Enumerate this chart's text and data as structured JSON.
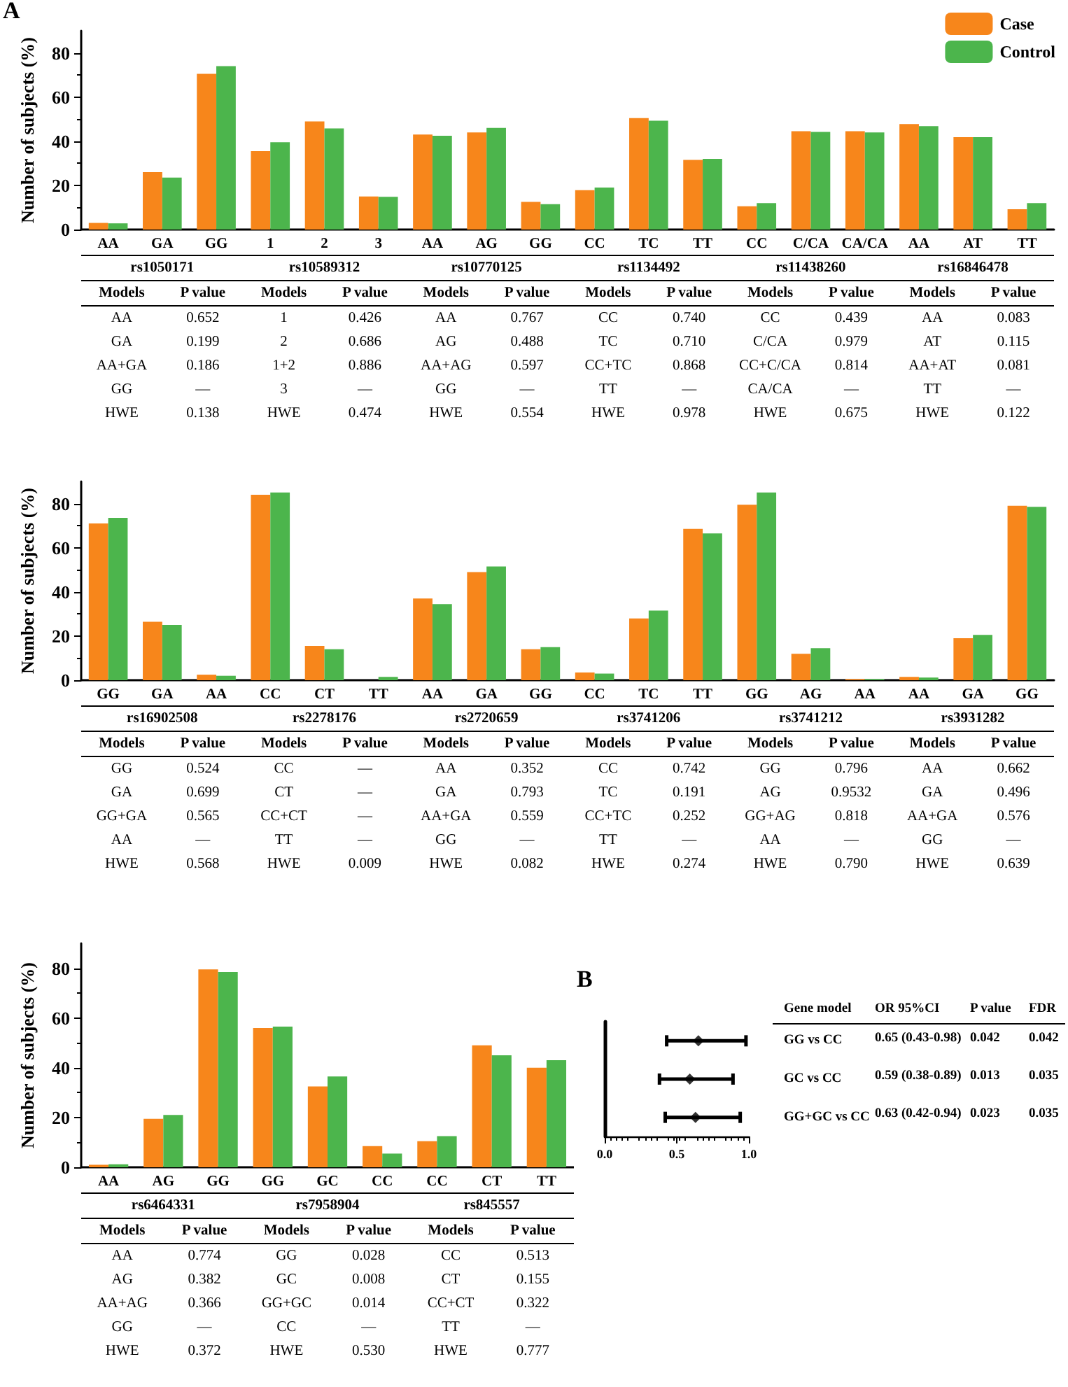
{
  "chart_data": [
    {
      "type": "bar",
      "title": "A",
      "ylabel": "Number of subjects (%)",
      "legend": "top right",
      "ylim": [
        0,
        90
      ],
      "yticks": [
        0,
        20,
        40,
        60,
        80
      ],
      "categories": [
        "AA",
        "GA",
        "GG",
        "1",
        "2",
        "3",
        "AA",
        "AG",
        "GG",
        "CC",
        "TC",
        "TT",
        "CC",
        "C/CA",
        "CA/CA",
        "AA",
        "AT",
        "TT"
      ],
      "series": [
        {
          "name": "Case",
          "color": "#f7861b",
          "values": [
            3,
            26,
            70.5,
            35.5,
            49,
            15,
            43,
            44,
            12.5,
            17.8,
            50.5,
            31.5,
            10.5,
            44.5,
            44.5,
            47.8,
            41.8,
            9.2
          ]
        },
        {
          "name": "Control",
          "color": "#4cb54c",
          "values": [
            2.8,
            23.5,
            74,
            39.5,
            45.8,
            14.8,
            42.5,
            46,
            11.5,
            19,
            49.3,
            32,
            12,
            44.2,
            44,
            46.8,
            41.8,
            12
          ]
        }
      ],
      "annotations": [
        "rs1050171",
        "Models",
        "P value",
        "AA",
        "0.652",
        "GA",
        "0.199",
        "AA+GA",
        "0.186",
        "GG",
        "—",
        "HWE",
        "0.138",
        "rs10589312",
        "Models",
        "P value",
        "1",
        "0.426",
        "2",
        "0.686",
        "1+2",
        "0.886",
        "3",
        "—",
        "HWE",
        "0.474",
        "rs10770125",
        "Models",
        "P value",
        "AA",
        "0.767",
        "AG",
        "0.488",
        "AA+AG",
        "0.597",
        "GG",
        "—",
        "HWE",
        "0.554",
        "rs1134492",
        "Models",
        "P value",
        "CC",
        "0.740",
        "TC",
        "0.710",
        "CC+TC",
        "0.868",
        "TT",
        "—",
        "HWE",
        "0.978",
        "rs11438260",
        "Models",
        "P value",
        "CC",
        "0.439",
        "C/CA",
        "0.979",
        "CC+C/CA",
        "0.814",
        "CA/CA",
        "—",
        "HWE",
        "0.675",
        "rs16846478",
        "Models",
        "P value",
        "AA",
        "0.083",
        "AT",
        "0.115",
        "AA+AT",
        "0.081",
        "TT",
        "—",
        "HWE",
        "0.122"
      ]
    },
    {
      "type": "bar",
      "ylabel": "Number of subjects (%)",
      "legend": false,
      "ylim": [
        0,
        90
      ],
      "yticks": [
        0,
        20,
        40,
        60,
        80
      ],
      "categories": [
        "GG",
        "GA",
        "AA",
        "CC",
        "CT",
        "TT",
        "AA",
        "GA",
        "GG",
        "CC",
        "TC",
        "TT",
        "GG",
        "AG",
        "AA",
        "AA",
        "GA",
        "GG"
      ],
      "series": [
        {
          "color": "#f7861b",
          "values": [
            71,
            26.5,
            2.5,
            84,
            15.5,
            0,
            37,
            49,
            14,
            3.5,
            28,
            68.5,
            79.5,
            12,
            0.5,
            1.5,
            19,
            79
          ]
        },
        {
          "color": "#4cb54c",
          "values": [
            73.5,
            25,
            2,
            85,
            14,
            1.5,
            34.5,
            51.5,
            15,
            3,
            31.5,
            66.5,
            85,
            14.5,
            0.5,
            1.2,
            20.5,
            78.5
          ]
        }
      ],
      "annotations": [
        "rs16902508",
        "Models",
        "P value",
        "GG",
        "0.524",
        "GA",
        "0.699",
        "GG+GA",
        "0.565",
        "AA",
        "—",
        "HWE",
        "0.568",
        "rs2278176",
        "Models",
        "P value",
        "CC",
        "—",
        "CT",
        "—",
        "CC+CT",
        "—",
        "TT",
        "—",
        "HWE",
        "0.009",
        "rs2720659",
        "Models",
        "P value",
        "AA",
        "0.352",
        "GA",
        "0.793",
        "AA+GA",
        "0.559",
        "GG",
        "—",
        "HWE",
        "0.082",
        "rs3741206",
        "Models",
        "P value",
        "CC",
        "0.742",
        "TC",
        "0.191",
        "CC+TC",
        "0.252",
        "TT",
        "—",
        "HWE",
        "0.274",
        "rs3741212",
        "Models",
        "P value",
        "GG",
        "0.796",
        "AG",
        "0.9532",
        "GG+AG",
        "0.818",
        "AA",
        "—",
        "HWE",
        "0.790",
        "rs3931282",
        "Models",
        "P value",
        "AA",
        "0.662",
        "GA",
        "0.496",
        "AA+GA",
        "0.576",
        "GG",
        "—",
        "HWE",
        "0.639"
      ]
    },
    {
      "type": "bar",
      "ylabel": "Number of subjects (%)",
      "legend": false,
      "ylim": [
        0,
        90
      ],
      "yticks": [
        0,
        20,
        40,
        60,
        80
      ],
      "categories": [
        "AA",
        "AG",
        "GG",
        "GG",
        "GC",
        "CC",
        "CC",
        "CT",
        "TT"
      ],
      "series": [
        {
          "color": "#f7861b",
          "values": [
            1,
            19.5,
            79.5,
            56,
            32.5,
            8.5,
            10.5,
            49,
            40
          ]
        },
        {
          "color": "#4cb54c",
          "values": [
            1.2,
            21,
            78.5,
            56.5,
            36.5,
            5.5,
            12.5,
            45,
            43
          ]
        }
      ],
      "annotations": [
        "rs6464331",
        "Models",
        "P value",
        "AA",
        "0.774",
        "AG",
        "0.382",
        "AA+AG",
        "0.366",
        "GG",
        "—",
        "HWE",
        "0.372",
        "rs7958904",
        "Models",
        "P value",
        "GG",
        "0.028",
        "GC",
        "0.008",
        "GG+GC",
        "0.014",
        "CC",
        "—",
        "HWE",
        "0.530",
        "rs845557",
        "Models",
        "P value",
        "CC",
        "0.513",
        "CT",
        "0.155",
        "CC+CT",
        "0.322",
        "TT",
        "—",
        "HWE",
        "0.777"
      ]
    },
    {
      "type": "scatter",
      "title": "B",
      "orientation": "horizontal",
      "marker": "diamond",
      "categories": [
        "GG vs CC",
        "GC vs CC",
        "GG+GC vs CC"
      ],
      "values": [
        0.65,
        0.59,
        0.63
      ],
      "color": "#000000",
      "errors": [
        [
          0.43,
          0.98
        ],
        [
          0.38,
          0.89
        ],
        [
          0.42,
          0.94
        ]
      ],
      "xlim": [
        0,
        1
      ],
      "xticks": [
        {
          "value": 0,
          "label": "0.0"
        },
        {
          "value": 0.5,
          "label": "0.5"
        },
        {
          "value": 1,
          "label": "1.0"
        }
      ],
      "annotations": [
        "Gene model",
        "OR  95%CI",
        "P value",
        "FDR",
        "0.65 (0.43-0.98)",
        "0.042",
        "0.042",
        "0.59 (0.38-0.89)",
        "0.013",
        "0.035",
        "0.63 (0.42-0.94)",
        "0.023",
        "0.035"
      ]
    }
  ]
}
